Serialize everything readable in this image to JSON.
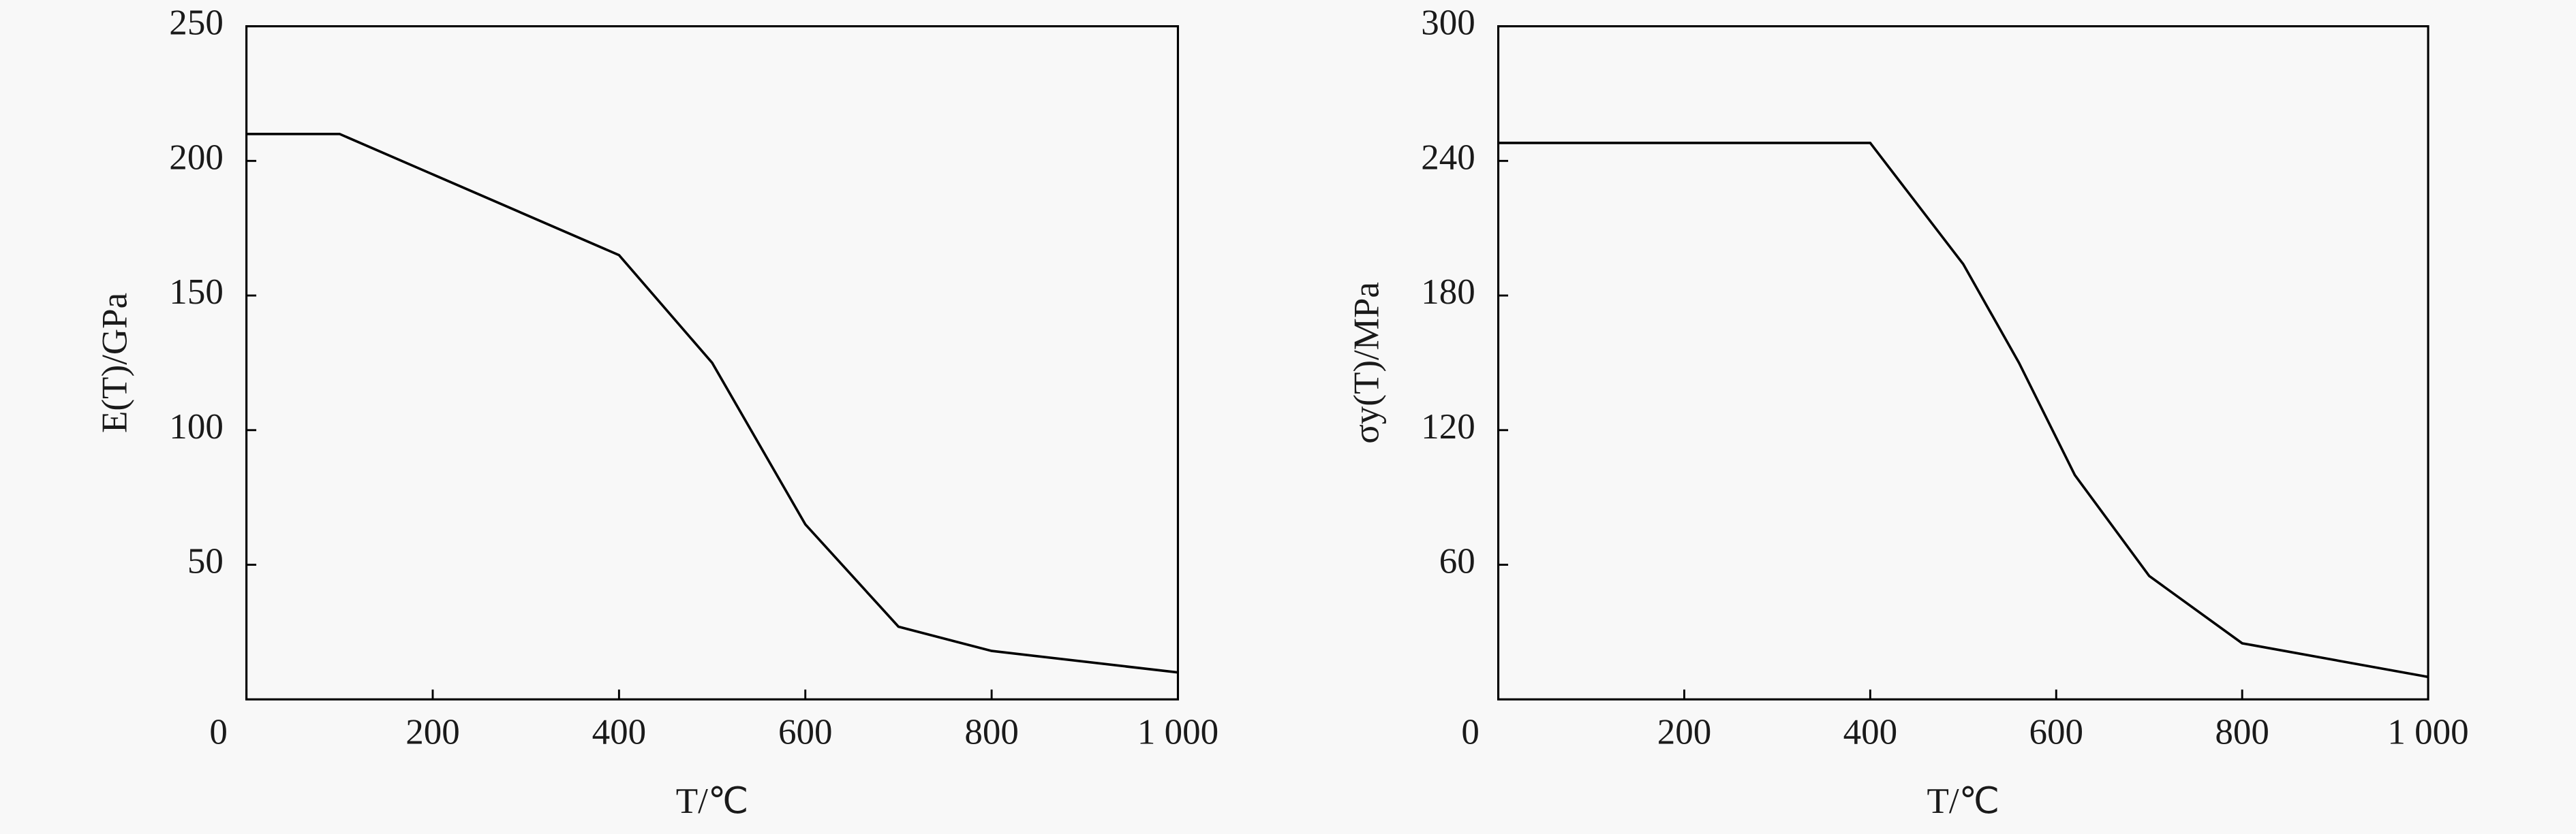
{
  "chart_data": [
    {
      "type": "line",
      "x_label": "T/℃",
      "y_label": "E(T)/GPa",
      "x": [
        0,
        100,
        400,
        500,
        600,
        700,
        800,
        1000
      ],
      "series": [
        {
          "color": "#000000",
          "values": [
            210,
            210,
            165,
            125,
            65,
            27,
            18,
            10
          ]
        }
      ],
      "xlim": [
        0,
        1000
      ],
      "xticks": [
        0,
        200,
        400,
        600,
        800,
        {
          "value": 1000,
          "label": "1 000"
        }
      ],
      "ylim": [
        0,
        250
      ],
      "yticks": [
        50,
        100,
        150,
        200,
        250
      ]
    },
    {
      "type": "line",
      "x_label": "T/℃",
      "y_label": "σy(T)/MPa",
      "x": [
        0,
        400,
        500,
        560,
        620,
        700,
        800,
        1000
      ],
      "series": [
        {
          "color": "#000000",
          "values": [
            248,
            248,
            194,
            150,
            100,
            55,
            25,
            10
          ]
        }
      ],
      "xlim": [
        0,
        1000
      ],
      "xticks": [
        0,
        200,
        400,
        600,
        800,
        {
          "value": 1000,
          "label": "1 000"
        }
      ],
      "ylim": [
        0,
        300
      ],
      "yticks": [
        60,
        120,
        180,
        240,
        300
      ]
    }
  ]
}
